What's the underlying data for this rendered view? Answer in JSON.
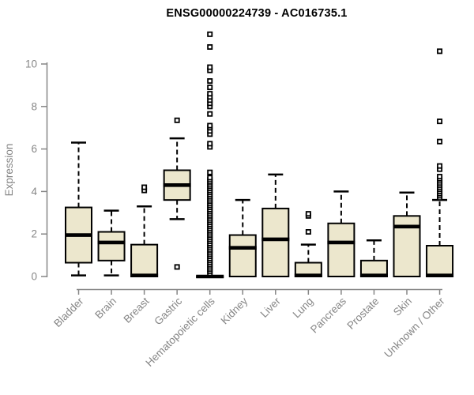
{
  "chart_data": {
    "type": "boxplot",
    "title": "ENSG00000224739 - AC016735.1",
    "xlabel": "",
    "ylabel": "Expression",
    "yticks": [
      0,
      2,
      4,
      6,
      8,
      10
    ],
    "ylim": [
      -0.6,
      11.6
    ],
    "grid": false,
    "legend": "none",
    "categories": [
      "Bladder",
      "Brain",
      "Breast",
      "Gastric",
      "Hematopoietic cells",
      "Kidney",
      "Liver",
      "Lung",
      "Pancreas",
      "Prostate",
      "Skin",
      "Unknown / Other"
    ],
    "series": [
      {
        "name": "Bladder",
        "whisker_low": 0.05,
        "q1": 0.65,
        "median": 1.95,
        "q3": 3.25,
        "whisker_high": 6.3,
        "outliers": []
      },
      {
        "name": "Brain",
        "whisker_low": 0.05,
        "q1": 0.75,
        "median": 1.6,
        "q3": 2.1,
        "whisker_high": 3.1,
        "outliers": []
      },
      {
        "name": "Breast",
        "whisker_low": 0,
        "q1": 0,
        "median": 0.05,
        "q3": 1.5,
        "whisker_high": 3.3,
        "outliers": [
          4.05,
          4.2
        ]
      },
      {
        "name": "Gastric",
        "whisker_low": 2.7,
        "q1": 3.6,
        "median": 4.3,
        "q3": 5.0,
        "whisker_high": 6.5,
        "outliers": [
          0.45,
          7.35
        ]
      },
      {
        "name": "Hematopoietic cells",
        "whisker_low": 0,
        "q1": 0,
        "median": 0,
        "q3": 0,
        "whisker_high": 0,
        "outliers": [
          0.15,
          0.25,
          0.35,
          0.45,
          0.55,
          0.65,
          0.75,
          0.85,
          0.95,
          1.05,
          1.15,
          1.25,
          1.35,
          1.45,
          1.55,
          1.65,
          1.75,
          1.85,
          1.95,
          2.05,
          2.15,
          2.25,
          2.35,
          2.45,
          2.55,
          2.65,
          2.75,
          2.85,
          2.95,
          3.05,
          3.15,
          3.25,
          3.35,
          3.45,
          3.55,
          3.65,
          3.75,
          3.85,
          3.95,
          4.05,
          4.15,
          4.25,
          4.35,
          4.45,
          4.55,
          4.65,
          4.9,
          6.1,
          6.25,
          6.7,
          6.85,
          7.0,
          7.1,
          7.65,
          8.0,
          8.15,
          8.3,
          8.45,
          8.6,
          8.9,
          9.2,
          9.7,
          9.85,
          10.8,
          11.4
        ]
      },
      {
        "name": "Kidney",
        "whisker_low": 0,
        "q1": 0,
        "median": 1.35,
        "q3": 1.95,
        "whisker_high": 3.6,
        "outliers": []
      },
      {
        "name": "Liver",
        "whisker_low": 0,
        "q1": 0,
        "median": 1.75,
        "q3": 3.2,
        "whisker_high": 4.8,
        "outliers": []
      },
      {
        "name": "Lung",
        "whisker_low": 0,
        "q1": 0,
        "median": 0.05,
        "q3": 0.65,
        "whisker_high": 1.5,
        "outliers": [
          2.1,
          2.85,
          2.95
        ]
      },
      {
        "name": "Pancreas",
        "whisker_low": 0,
        "q1": 0,
        "median": 1.6,
        "q3": 2.5,
        "whisker_high": 4.0,
        "outliers": []
      },
      {
        "name": "Prostate",
        "whisker_low": 0,
        "q1": 0,
        "median": 0.05,
        "q3": 0.75,
        "whisker_high": 1.7,
        "outliers": []
      },
      {
        "name": "Skin",
        "whisker_low": 0,
        "q1": 0,
        "median": 2.35,
        "q3": 2.85,
        "whisker_high": 3.95,
        "outliers": []
      },
      {
        "name": "Unknown / Other",
        "whisker_low": 0,
        "q1": 0,
        "median": 0.05,
        "q3": 1.45,
        "whisker_high": 3.6,
        "outliers": [
          3.7,
          3.8,
          3.9,
          4.0,
          4.1,
          4.2,
          4.3,
          4.4,
          4.5,
          4.6,
          4.7,
          5.05,
          5.2,
          6.35,
          7.3,
          10.6
        ]
      }
    ],
    "style": {
      "box_fill": "#ece7cd",
      "box_stroke": "#000000",
      "median_color": "#000000",
      "whisker_style": "dashed",
      "outlier_marker": "open-square",
      "axis_color": "#868686",
      "tick_label_color": "#868686",
      "title_color": "#000000",
      "background": "#ffffff"
    }
  }
}
